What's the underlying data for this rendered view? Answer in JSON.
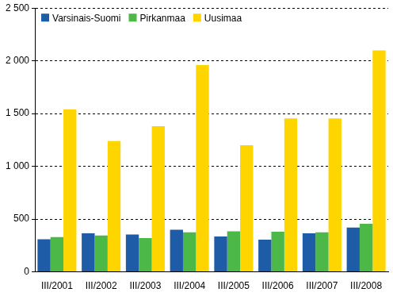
{
  "chart_data": {
    "type": "bar",
    "categories": [
      "III/2001",
      "III/2002",
      "III/2003",
      "III/2004",
      "III/2005",
      "III/2006",
      "III/2007",
      "III/2008"
    ],
    "series": [
      {
        "name": "Varsinais-Suomi",
        "color": "#1f5ca8",
        "values": [
          310,
          365,
          355,
          400,
          335,
          305,
          365,
          420
        ]
      },
      {
        "name": "Pirkanmaa",
        "color": "#4cb848",
        "values": [
          330,
          345,
          320,
          375,
          385,
          380,
          375,
          455
        ]
      },
      {
        "name": "Uusimaa",
        "color": "#ffd500",
        "values": [
          1540,
          1240,
          1380,
          1960,
          1200,
          1455,
          1455,
          2100
        ]
      }
    ],
    "ylim": [
      0,
      2500
    ],
    "yticks": [
      0,
      500,
      {
        "value": 1000,
        "label": "1 000"
      },
      {
        "value": 1500,
        "label": "1 500"
      },
      {
        "value": 2000,
        "label": "2 000"
      },
      {
        "value": 2500,
        "label": "2 500"
      }
    ],
    "grid": true,
    "legend": "upper left"
  }
}
